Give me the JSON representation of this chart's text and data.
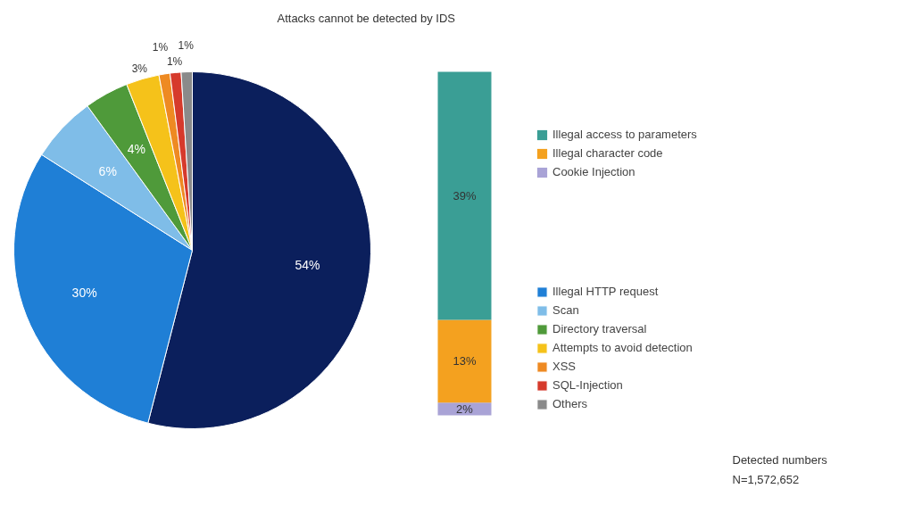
{
  "chart_data": [
    {
      "type": "pie",
      "categories": [
        null,
        "Illegal HTTP request",
        "Scan",
        "Directory traversal",
        "Attempts to avoid detection",
        "XSS",
        "SQL-Injection",
        "Others"
      ],
      "values": [
        54,
        30,
        6,
        4,
        3,
        1,
        1,
        1
      ],
      "value_labels": [
        "54%",
        "30%",
        "6%",
        "4%",
        "3%",
        "1%",
        "1%",
        "1%"
      ],
      "colors": [
        "#0b1f5c",
        "#1f7fd6",
        "#7fbde8",
        "#4f9a3a",
        "#f5c21a",
        "#ee8a22",
        "#d63a2c",
        "#8a8a8a"
      ],
      "legend": "right",
      "annotations": [
        "Detected numbers",
        "N=1,572,652"
      ]
    },
    {
      "type": "bar",
      "stacked": true,
      "title": "Attacks cannot be detected by IDS",
      "categories": [
        null
      ],
      "series": [
        {
          "name": "Cookie Injection",
          "color": "#a9a3d6",
          "values": [
            2
          ],
          "value_labels": [
            "2%"
          ]
        },
        {
          "name": "Illegal character code",
          "color": "#f4a11f",
          "values": [
            13
          ],
          "value_labels": [
            "13%"
          ]
        },
        {
          "name": "Illegal access to parameters",
          "color": "#3a9e95",
          "values": [
            39
          ],
          "value_labels": [
            "39%"
          ]
        }
      ],
      "legend": "top right"
    }
  ]
}
